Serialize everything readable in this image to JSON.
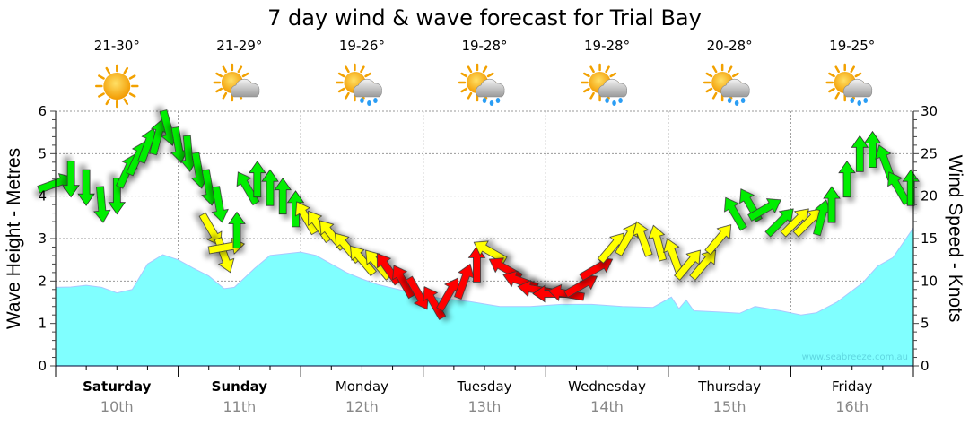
{
  "chart_data": {
    "type": "area",
    "title": "7 day wind & wave forecast for Trial Bay",
    "ylabel_left": "Wave Height - Metres",
    "ylabel_right": "Wind Speed - Knots",
    "ylim_left": [
      0,
      6
    ],
    "ylim_right": [
      0,
      30
    ],
    "yticks_left": [
      "0",
      "1",
      "2",
      "3",
      "4",
      "5",
      "6"
    ],
    "yticks_right": [
      "0",
      "5",
      "10",
      "15",
      "20",
      "25",
      "30"
    ],
    "xlim_hours": [
      0,
      168
    ],
    "grid": true,
    "watermark": "www.seabreeze.com.au",
    "days": [
      {
        "name": "Saturday",
        "date": "10th",
        "bold": true,
        "temp": "21-30°",
        "icon": "sun"
      },
      {
        "name": "Sunday",
        "date": "11th",
        "bold": true,
        "temp": "21-29°",
        "icon": "sun-cloud"
      },
      {
        "name": "Monday",
        "date": "12th",
        "bold": false,
        "temp": "19-26°",
        "icon": "sun-cloud-rain"
      },
      {
        "name": "Tuesday",
        "date": "13th",
        "bold": false,
        "temp": "19-28°",
        "icon": "sun-cloud-rain"
      },
      {
        "name": "Wednesday",
        "date": "14th",
        "bold": false,
        "temp": "19-28°",
        "icon": "sun-cloud-rain"
      },
      {
        "name": "Thursday",
        "date": "15th",
        "bold": false,
        "temp": "20-28°",
        "icon": "sun-cloud-rain"
      },
      {
        "name": "Friday",
        "date": "16th",
        "bold": false,
        "temp": "19-25°",
        "icon": "sun-cloud-rain"
      }
    ],
    "wave_series": {
      "name": "Wave height (m)",
      "color": "#80ffff",
      "points": [
        [
          0,
          1.85
        ],
        [
          3,
          1.86
        ],
        [
          6,
          1.9
        ],
        [
          9,
          1.85
        ],
        [
          12,
          1.72
        ],
        [
          15,
          1.8
        ],
        [
          18,
          2.4
        ],
        [
          21,
          2.62
        ],
        [
          24,
          2.5
        ],
        [
          27,
          2.3
        ],
        [
          30,
          2.12
        ],
        [
          33,
          1.82
        ],
        [
          35,
          1.85
        ],
        [
          39,
          2.3
        ],
        [
          42,
          2.6
        ],
        [
          45,
          2.64
        ],
        [
          48,
          2.68
        ],
        [
          51,
          2.6
        ],
        [
          54,
          2.4
        ],
        [
          57,
          2.2
        ],
        [
          60,
          2.05
        ],
        [
          63,
          1.92
        ],
        [
          69,
          1.75
        ],
        [
          75,
          1.6
        ],
        [
          81,
          1.52
        ],
        [
          87,
          1.4
        ],
        [
          93,
          1.4
        ],
        [
          99,
          1.45
        ],
        [
          105,
          1.45
        ],
        [
          111,
          1.4
        ],
        [
          117,
          1.38
        ],
        [
          120.6,
          1.62
        ],
        [
          122.1,
          1.35
        ],
        [
          123.5,
          1.55
        ],
        [
          125,
          1.3
        ],
        [
          130,
          1.27
        ],
        [
          134,
          1.24
        ],
        [
          137,
          1.4
        ],
        [
          142,
          1.3
        ],
        [
          146,
          1.2
        ],
        [
          149,
          1.25
        ],
        [
          153,
          1.5
        ],
        [
          158,
          1.95
        ],
        [
          161,
          2.35
        ],
        [
          164,
          2.55
        ],
        [
          168,
          3.25
        ]
      ]
    },
    "wind_series": {
      "name": "Wind speed (knots) & direction",
      "colors": {
        "g": "#00ee00",
        "y": "#ffff00",
        "r": "#ff0000"
      },
      "points": [
        [
          0,
          21.5,
          70,
          "g"
        ],
        [
          3,
          22,
          180,
          "g"
        ],
        [
          6,
          21,
          180,
          "g"
        ],
        [
          9,
          19,
          175,
          "g"
        ],
        [
          12,
          20,
          180,
          "g"
        ],
        [
          14,
          23,
          25,
          "g"
        ],
        [
          16,
          24.5,
          25,
          "g"
        ],
        [
          18,
          26,
          20,
          "g"
        ],
        [
          20,
          27,
          15,
          "g"
        ],
        [
          22,
          28,
          165,
          "g"
        ],
        [
          24,
          26,
          170,
          "g"
        ],
        [
          26,
          25,
          175,
          "g"
        ],
        [
          28,
          23,
          170,
          "g"
        ],
        [
          30,
          21,
          170,
          "g"
        ],
        [
          32,
          19,
          170,
          "g"
        ],
        [
          30.5,
          16,
          150,
          "y"
        ],
        [
          33,
          13,
          160,
          "y"
        ],
        [
          33.5,
          14,
          80,
          "y"
        ],
        [
          35.5,
          16,
          0,
          "g"
        ],
        [
          37.5,
          21,
          -30,
          "g"
        ],
        [
          39.5,
          22,
          0,
          "g"
        ],
        [
          42,
          21,
          0,
          "g"
        ],
        [
          44.5,
          20,
          0,
          "g"
        ],
        [
          47,
          18.5,
          0,
          "g"
        ],
        [
          49,
          17.5,
          -30,
          "y"
        ],
        [
          51.5,
          16.5,
          -35,
          "y"
        ],
        [
          54,
          15.5,
          -40,
          "y"
        ],
        [
          57,
          14,
          -40,
          "y"
        ],
        [
          60,
          12.5,
          -40,
          "y"
        ],
        [
          63,
          12,
          -40,
          "y"
        ],
        [
          65,
          11.5,
          -35,
          "r"
        ],
        [
          68,
          10,
          -30,
          "r"
        ],
        [
          71,
          8.5,
          150,
          "r"
        ],
        [
          74,
          7.5,
          -30,
          "r"
        ],
        [
          77,
          8.5,
          30,
          "r"
        ],
        [
          80,
          10,
          20,
          "r"
        ],
        [
          82.5,
          12,
          0,
          "r"
        ],
        [
          85,
          13.5,
          -60,
          "y"
        ],
        [
          88,
          11.5,
          -60,
          "r"
        ],
        [
          91,
          10,
          -70,
          "r"
        ],
        [
          94,
          9,
          -80,
          "r"
        ],
        [
          97,
          8.5,
          -90,
          "r"
        ],
        [
          100,
          8.5,
          -80,
          "r"
        ],
        [
          103,
          9.5,
          60,
          "r"
        ],
        [
          106,
          11.5,
          60,
          "r"
        ],
        [
          109,
          14,
          40,
          "y"
        ],
        [
          112,
          15,
          30,
          "y"
        ],
        [
          115,
          15,
          -20,
          "y"
        ],
        [
          118,
          14.5,
          -15,
          "y"
        ],
        [
          121,
          13,
          -20,
          "y"
        ],
        [
          124,
          12,
          40,
          "y"
        ],
        [
          127,
          12,
          40,
          "y"
        ],
        [
          130,
          15,
          40,
          "y"
        ],
        [
          133,
          18,
          -30,
          "g"
        ],
        [
          136,
          19,
          -30,
          "g"
        ],
        [
          139,
          18.5,
          60,
          "g"
        ],
        [
          142,
          17,
          45,
          "g"
        ],
        [
          145,
          17,
          45,
          "y"
        ],
        [
          147.5,
          17,
          45,
          "y"
        ],
        [
          150,
          17.5,
          15,
          "g"
        ],
        [
          152,
          19,
          0,
          "g"
        ],
        [
          155,
          22,
          0,
          "g"
        ],
        [
          157.5,
          25,
          0,
          "g"
        ],
        [
          160,
          25.5,
          0,
          "g"
        ],
        [
          162.5,
          24,
          -20,
          "g"
        ],
        [
          165,
          21,
          -30,
          "g"
        ],
        [
          167.5,
          21,
          0,
          "g"
        ]
      ]
    }
  }
}
